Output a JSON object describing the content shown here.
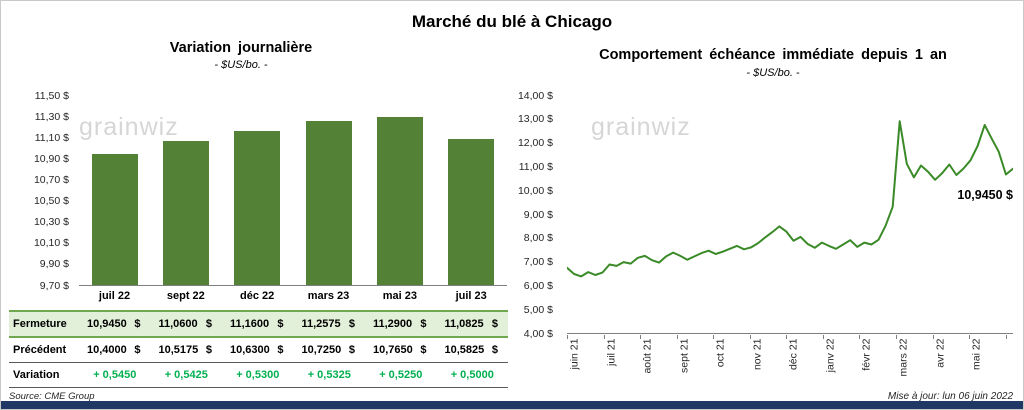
{
  "main_title": "Marché du blé à Chicago",
  "watermark": "grainwiz",
  "colors": {
    "bar_green": "#538135",
    "line_green": "#3a8a28",
    "table_row_bg": "#e2efd9",
    "table_row_border": "#6fa84f",
    "variation_green": "#00b050",
    "footer_bar": "#1f3864"
  },
  "chart_data": [
    {
      "type": "bar",
      "title": "Variation journalière",
      "subtitle": "- $US/bo. -",
      "categories": [
        "juil 22",
        "sept 22",
        "déc 22",
        "mars 23",
        "mai 23",
        "juil 23"
      ],
      "values": [
        10.945,
        11.06,
        11.16,
        11.2575,
        11.29,
        11.0825
      ],
      "ylim": [
        9.7,
        11.5
      ],
      "yticks": [
        "11,50 $",
        "11,30 $",
        "11,10 $",
        "10,90 $",
        "10,70 $",
        "10,50 $",
        "10,30 $",
        "10,10 $",
        "9,90 $",
        "9,70 $"
      ],
      "grid": false,
      "legend": "none"
    },
    {
      "type": "line",
      "title": "Comportement échéance immédiate depuis 1 an",
      "subtitle": "- $US/bo. -",
      "x_labels": [
        "juin 21",
        "juil 21",
        "août 21",
        "sept 21",
        "oct 21",
        "nov 21",
        "déc 21",
        "janv 22",
        "févr 22",
        "mars 22",
        "avr 22",
        "mai 22"
      ],
      "values": [
        6.78,
        6.52,
        6.42,
        6.6,
        6.48,
        6.58,
        6.92,
        6.86,
        7.02,
        6.96,
        7.2,
        7.28,
        7.1,
        7.0,
        7.26,
        7.42,
        7.28,
        7.12,
        7.26,
        7.4,
        7.5,
        7.36,
        7.46,
        7.58,
        7.7,
        7.56,
        7.64,
        7.82,
        8.06,
        8.28,
        8.52,
        8.3,
        7.92,
        8.08,
        7.78,
        7.62,
        7.84,
        7.7,
        7.58,
        7.76,
        7.94,
        7.66,
        7.84,
        7.76,
        7.96,
        8.55,
        9.35,
        12.94,
        11.15,
        10.58,
        11.08,
        10.82,
        10.48,
        10.76,
        11.12,
        10.68,
        10.95,
        11.3,
        11.9,
        12.78,
        12.2,
        11.65,
        10.7,
        10.945
      ],
      "ylim": [
        4.0,
        14.0
      ],
      "yticks": [
        "14,00 $",
        "13,00 $",
        "12,00 $",
        "11,00 $",
        "10,00 $",
        "9,00 $",
        "8,00 $",
        "7,00 $",
        "6,00 $",
        "5,00 $",
        "4,00 $"
      ],
      "annotation": "10,9450 $",
      "grid": false,
      "legend": "none"
    }
  ],
  "table": {
    "rows": [
      {
        "label": "Fermeture",
        "currency": "$",
        "values": [
          "10,9450",
          "11,0600",
          "11,1600",
          "11,2575",
          "11,2900",
          "11,0825"
        ]
      },
      {
        "label": "Précédent",
        "currency": "$",
        "values": [
          "10,4000",
          "10,5175",
          "10,6300",
          "10,7250",
          "10,7650",
          "10,5825"
        ]
      },
      {
        "label": "Variation",
        "currency": null,
        "values": [
          "+ 0,5450",
          "+ 0,5425",
          "+ 0,5300",
          "+ 0,5325",
          "+ 0,5250",
          "+ 0,5000"
        ]
      }
    ]
  },
  "footer": {
    "source": "Source: CME Group",
    "updated": "Mise à jour: lun 06 juin 2022"
  }
}
